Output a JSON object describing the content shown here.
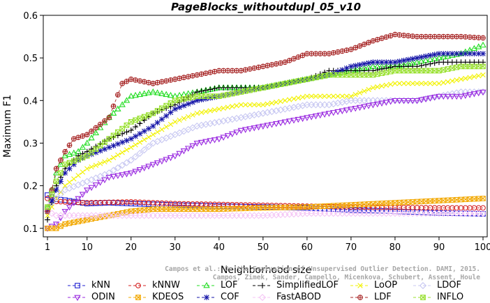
{
  "chart_data": {
    "type": "line",
    "title": "PageBlocks_withoutdupl_05_v10",
    "xlabel": "Neighborhood size",
    "ylabel": "Maximum F1",
    "xlim": [
      1,
      100
    ],
    "ylim": [
      0.08,
      0.6
    ],
    "xticks": [
      1,
      10,
      20,
      30,
      40,
      50,
      60,
      70,
      80,
      90,
      100
    ],
    "yticks": [
      0.1,
      0.2,
      0.3,
      0.4,
      0.5,
      0.6
    ],
    "xtick_labels": [
      "1",
      "10",
      "20",
      "30",
      "40",
      "50",
      "60",
      "70",
      "80",
      "90",
      "100"
    ],
    "ytick_labels": [
      "0.1",
      "0.2",
      "0.3",
      "0.4",
      "0.5",
      "0.6"
    ],
    "legend_position": "bottom",
    "series": [
      {
        "name": "kNN",
        "color": "#1f1fd2",
        "marker": "square",
        "points": [
          [
            1,
            0.178
          ],
          [
            3,
            0.168
          ],
          [
            5,
            0.166
          ],
          [
            10,
            0.158
          ],
          [
            15,
            0.16
          ],
          [
            20,
            0.158
          ],
          [
            30,
            0.155
          ],
          [
            40,
            0.152
          ],
          [
            50,
            0.15
          ],
          [
            60,
            0.148
          ],
          [
            70,
            0.143
          ],
          [
            80,
            0.14
          ],
          [
            90,
            0.136
          ],
          [
            100,
            0.134
          ]
        ]
      },
      {
        "name": "kNNW",
        "color": "#d42020",
        "marker": "circle",
        "points": [
          [
            1,
            0.17
          ],
          [
            3,
            0.163
          ],
          [
            5,
            0.162
          ],
          [
            10,
            0.16
          ],
          [
            20,
            0.162
          ],
          [
            30,
            0.158
          ],
          [
            40,
            0.156
          ],
          [
            50,
            0.154
          ],
          [
            60,
            0.152
          ],
          [
            70,
            0.15
          ],
          [
            80,
            0.149
          ],
          [
            90,
            0.148
          ],
          [
            100,
            0.148
          ]
        ]
      },
      {
        "name": "LOF",
        "color": "#22dd22",
        "marker": "triangle",
        "points": [
          [
            1,
            0.15
          ],
          [
            3,
            0.23
          ],
          [
            5,
            0.27
          ],
          [
            8,
            0.28
          ],
          [
            10,
            0.3
          ],
          [
            15,
            0.36
          ],
          [
            20,
            0.41
          ],
          [
            25,
            0.42
          ],
          [
            30,
            0.41
          ],
          [
            35,
            0.42
          ],
          [
            40,
            0.43
          ],
          [
            45,
            0.43
          ],
          [
            50,
            0.43
          ],
          [
            55,
            0.44
          ],
          [
            60,
            0.45
          ],
          [
            65,
            0.46
          ],
          [
            70,
            0.47
          ],
          [
            75,
            0.48
          ],
          [
            80,
            0.48
          ],
          [
            85,
            0.49
          ],
          [
            90,
            0.5
          ],
          [
            95,
            0.51
          ],
          [
            100,
            0.53
          ]
        ]
      },
      {
        "name": "SimplifiedLOF",
        "color": "#000000",
        "marker": "plus",
        "points": [
          [
            1,
            0.12
          ],
          [
            3,
            0.2
          ],
          [
            5,
            0.24
          ],
          [
            8,
            0.27
          ],
          [
            10,
            0.28
          ],
          [
            15,
            0.31
          ],
          [
            20,
            0.33
          ],
          [
            25,
            0.37
          ],
          [
            30,
            0.39
          ],
          [
            35,
            0.42
          ],
          [
            40,
            0.43
          ],
          [
            45,
            0.43
          ],
          [
            50,
            0.43
          ],
          [
            55,
            0.44
          ],
          [
            60,
            0.45
          ],
          [
            65,
            0.47
          ],
          [
            70,
            0.47
          ],
          [
            75,
            0.47
          ],
          [
            80,
            0.48
          ],
          [
            85,
            0.48
          ],
          [
            90,
            0.49
          ],
          [
            95,
            0.49
          ],
          [
            100,
            0.49
          ]
        ]
      },
      {
        "name": "LoOP",
        "color": "#f2f200",
        "marker": "cross",
        "points": [
          [
            1,
            0.13
          ],
          [
            3,
            0.17
          ],
          [
            5,
            0.2
          ],
          [
            10,
            0.24
          ],
          [
            15,
            0.26
          ],
          [
            20,
            0.29
          ],
          [
            25,
            0.32
          ],
          [
            30,
            0.35
          ],
          [
            35,
            0.37
          ],
          [
            40,
            0.38
          ],
          [
            45,
            0.39
          ],
          [
            50,
            0.39
          ],
          [
            55,
            0.4
          ],
          [
            60,
            0.41
          ],
          [
            65,
            0.41
          ],
          [
            70,
            0.41
          ],
          [
            75,
            0.43
          ],
          [
            80,
            0.44
          ],
          [
            85,
            0.44
          ],
          [
            90,
            0.44
          ],
          [
            95,
            0.45
          ],
          [
            100,
            0.46
          ]
        ]
      },
      {
        "name": "LDOF",
        "color": "#c8c8f2",
        "marker": "diamond",
        "points": [
          [
            1,
            0.15
          ],
          [
            3,
            0.17
          ],
          [
            5,
            0.19
          ],
          [
            10,
            0.21
          ],
          [
            15,
            0.23
          ],
          [
            20,
            0.26
          ],
          [
            25,
            0.3
          ],
          [
            30,
            0.32
          ],
          [
            35,
            0.34
          ],
          [
            40,
            0.35
          ],
          [
            45,
            0.36
          ],
          [
            50,
            0.37
          ],
          [
            55,
            0.38
          ],
          [
            60,
            0.39
          ],
          [
            65,
            0.39
          ],
          [
            70,
            0.4
          ],
          [
            75,
            0.4
          ],
          [
            80,
            0.4
          ],
          [
            85,
            0.4
          ],
          [
            90,
            0.41
          ],
          [
            95,
            0.42
          ],
          [
            100,
            0.42
          ]
        ]
      },
      {
        "name": "ODIN",
        "color": "#9a2ae0",
        "marker": "triangle-down",
        "points": [
          [
            1,
            0.1
          ],
          [
            3,
            0.11
          ],
          [
            5,
            0.14
          ],
          [
            8,
            0.17
          ],
          [
            10,
            0.19
          ],
          [
            15,
            0.22
          ],
          [
            20,
            0.23
          ],
          [
            25,
            0.25
          ],
          [
            30,
            0.27
          ],
          [
            35,
            0.3
          ],
          [
            40,
            0.31
          ],
          [
            45,
            0.33
          ],
          [
            50,
            0.34
          ],
          [
            55,
            0.35
          ],
          [
            60,
            0.36
          ],
          [
            65,
            0.37
          ],
          [
            70,
            0.38
          ],
          [
            75,
            0.39
          ],
          [
            80,
            0.4
          ],
          [
            85,
            0.4
          ],
          [
            90,
            0.41
          ],
          [
            95,
            0.41
          ],
          [
            100,
            0.42
          ]
        ]
      },
      {
        "name": "KDEOS",
        "color": "#f2a800",
        "marker": "square-x",
        "points": [
          [
            1,
            0.1
          ],
          [
            3,
            0.1
          ],
          [
            5,
            0.11
          ],
          [
            10,
            0.12
          ],
          [
            15,
            0.13
          ],
          [
            20,
            0.14
          ],
          [
            25,
            0.145
          ],
          [
            30,
            0.145
          ],
          [
            40,
            0.145
          ],
          [
            50,
            0.148
          ],
          [
            60,
            0.15
          ],
          [
            70,
            0.155
          ],
          [
            80,
            0.16
          ],
          [
            90,
            0.165
          ],
          [
            100,
            0.17
          ]
        ]
      },
      {
        "name": "COF",
        "color": "#1616a8",
        "marker": "star",
        "points": [
          [
            1,
            0.14
          ],
          [
            3,
            0.19
          ],
          [
            5,
            0.23
          ],
          [
            8,
            0.26
          ],
          [
            10,
            0.27
          ],
          [
            15,
            0.29
          ],
          [
            20,
            0.31
          ],
          [
            25,
            0.34
          ],
          [
            30,
            0.38
          ],
          [
            35,
            0.4
          ],
          [
            40,
            0.41
          ],
          [
            45,
            0.42
          ],
          [
            50,
            0.43
          ],
          [
            55,
            0.44
          ],
          [
            60,
            0.45
          ],
          [
            65,
            0.46
          ],
          [
            70,
            0.48
          ],
          [
            75,
            0.49
          ],
          [
            80,
            0.49
          ],
          [
            85,
            0.5
          ],
          [
            90,
            0.51
          ],
          [
            95,
            0.51
          ],
          [
            100,
            0.51
          ]
        ]
      },
      {
        "name": "FastABOD",
        "color": "#f5c6f5",
        "marker": "diamond",
        "points": [
          [
            1,
            0.14
          ],
          [
            3,
            0.13
          ],
          [
            5,
            0.13
          ],
          [
            10,
            0.13
          ],
          [
            20,
            0.13
          ],
          [
            30,
            0.13
          ],
          [
            40,
            0.13
          ],
          [
            50,
            0.13
          ],
          [
            60,
            0.135
          ],
          [
            70,
            0.135
          ],
          [
            80,
            0.135
          ],
          [
            90,
            0.135
          ],
          [
            100,
            0.135
          ]
        ]
      },
      {
        "name": "LDF",
        "color": "#a82828",
        "marker": "circle-plus",
        "points": [
          [
            1,
            0.14
          ],
          [
            3,
            0.24
          ],
          [
            5,
            0.28
          ],
          [
            7,
            0.31
          ],
          [
            10,
            0.32
          ],
          [
            15,
            0.36
          ],
          [
            18,
            0.44
          ],
          [
            20,
            0.45
          ],
          [
            25,
            0.44
          ],
          [
            30,
            0.45
          ],
          [
            35,
            0.46
          ],
          [
            40,
            0.47
          ],
          [
            45,
            0.47
          ],
          [
            50,
            0.48
          ],
          [
            55,
            0.49
          ],
          [
            60,
            0.51
          ],
          [
            65,
            0.51
          ],
          [
            70,
            0.52
          ],
          [
            75,
            0.54
          ],
          [
            80,
            0.555
          ],
          [
            85,
            0.55
          ],
          [
            90,
            0.55
          ],
          [
            95,
            0.55
          ],
          [
            100,
            0.547
          ]
        ]
      },
      {
        "name": "INFLO",
        "color": "#98e02e",
        "marker": "square-x",
        "points": [
          [
            1,
            0.15
          ],
          [
            3,
            0.21
          ],
          [
            5,
            0.25
          ],
          [
            10,
            0.27
          ],
          [
            15,
            0.31
          ],
          [
            20,
            0.35
          ],
          [
            25,
            0.37
          ],
          [
            30,
            0.4
          ],
          [
            35,
            0.41
          ],
          [
            40,
            0.41
          ],
          [
            45,
            0.42
          ],
          [
            50,
            0.43
          ],
          [
            55,
            0.44
          ],
          [
            60,
            0.45
          ],
          [
            65,
            0.46
          ],
          [
            70,
            0.46
          ],
          [
            75,
            0.46
          ],
          [
            80,
            0.47
          ],
          [
            85,
            0.47
          ],
          [
            90,
            0.47
          ],
          [
            95,
            0.48
          ],
          [
            100,
            0.48
          ]
        ]
      }
    ]
  },
  "legend_order": [
    "kNN",
    "kNNW",
    "LOF",
    "SimplifiedLOF",
    "LoOP",
    "LDOF",
    "ODIN",
    "KDEOS",
    "COF",
    "FastABOD",
    "LDF",
    "INFLO"
  ],
  "watermark": {
    "line1": "Campos et al.: On the Evaluation of Unsupervised Outlier Detection. DAMI, 2015.",
    "line2": "Campos, Zimek, Sander, Campello, Micenkova, Schubert, Assent, Houle"
  }
}
